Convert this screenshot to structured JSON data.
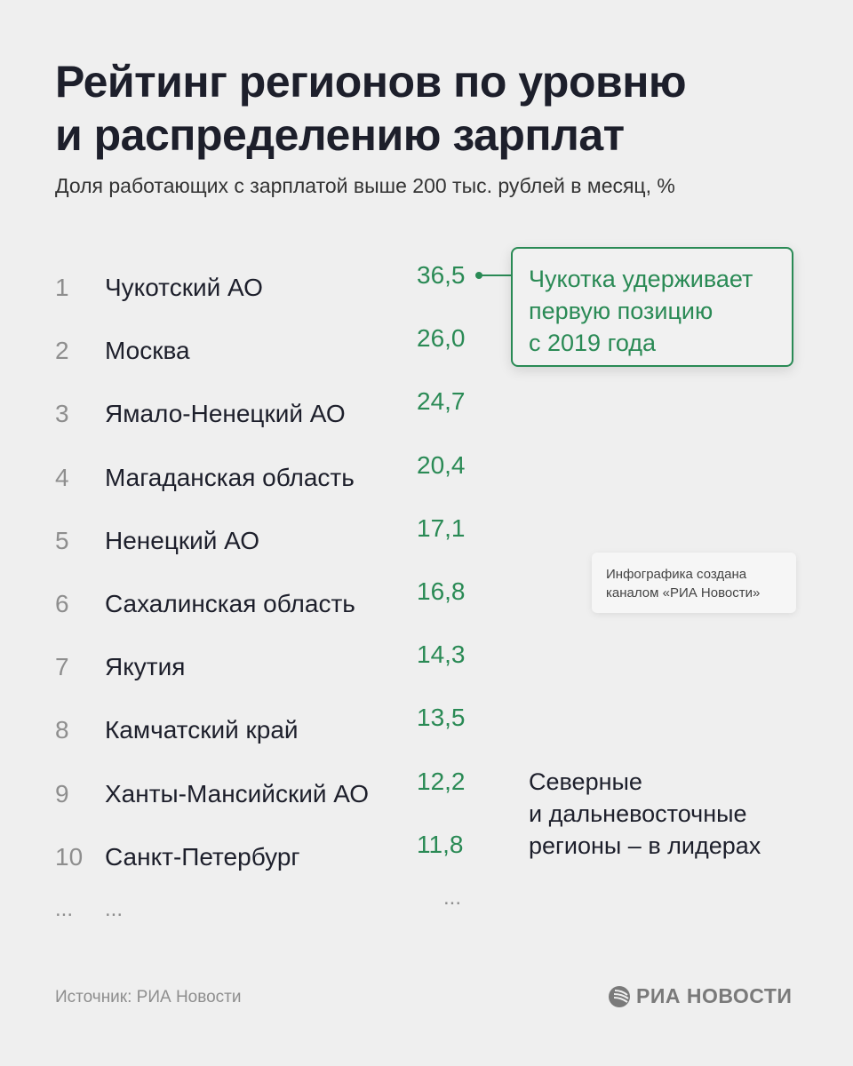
{
  "title_line1": "Рейтинг регионов по уровню",
  "title_line2": "и распределению зарплат",
  "subtitle": "Доля работающих с зарплатой выше 200 тыс. рублей в месяц, %",
  "rows": [
    {
      "rank": "1",
      "name": "Чукотский АО",
      "value": "36,5"
    },
    {
      "rank": "2",
      "name": "Москва",
      "value": "26,0"
    },
    {
      "rank": "3",
      "name": "Ямало-Ненецкий АО",
      "value": "24,7"
    },
    {
      "rank": "4",
      "name": "Магаданская область",
      "value": "20,4"
    },
    {
      "rank": "5",
      "name": "Ненецкий АО",
      "value": "17,1"
    },
    {
      "rank": "6",
      "name": "Сахалинская область",
      "value": "16,8"
    },
    {
      "rank": "7",
      "name": "Якутия",
      "value": "14,3"
    },
    {
      "rank": "8",
      "name": "Камчатский край",
      "value": "13,5"
    },
    {
      "rank": "9",
      "name": "Ханты-Мансийский АО",
      "value": "12,2"
    },
    {
      "rank": "10",
      "name": "Санкт-Петербург",
      "value": "11,8"
    }
  ],
  "ellipsis": "...",
  "callout": {
    "line1": "Чукотка удерживает",
    "line2": "первую позицию",
    "line3": "с 2019 года"
  },
  "credit": {
    "line1": "Инфографика создана",
    "line2": "каналом «РИА Новости»"
  },
  "note": {
    "line1": "Северные",
    "line2": "и дальневосточные",
    "line3": "регионы – в лидерах"
  },
  "source": "Источник: РИА Новости",
  "logo_text": "РИА НОВОСТИ",
  "colors": {
    "accent": "#2a8a55",
    "background": "#efefef",
    "text": "#1d1f2b",
    "muted": "#8e8e8e"
  }
}
